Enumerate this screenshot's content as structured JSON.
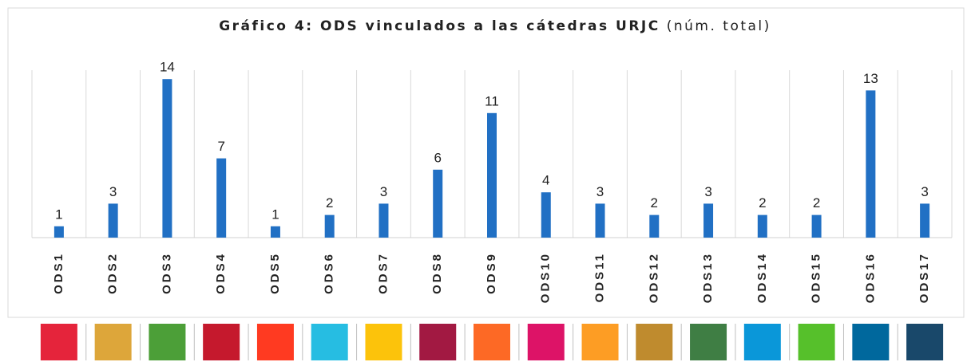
{
  "chart_data": {
    "type": "bar",
    "title": "Gráfico 4: ODS vinculados a las cátedras URJC",
    "subtitle": "(núm. total)",
    "categories": [
      "ODS1",
      "ODS2",
      "ODS3",
      "ODS4",
      "ODS5",
      "ODS6",
      "ODS7",
      "ODS8",
      "ODS9",
      "ODS10",
      "ODS11",
      "ODS12",
      "ODS13",
      "ODS14",
      "ODS15",
      "ODS16",
      "ODS17"
    ],
    "values": [
      1,
      3,
      14,
      7,
      1,
      2,
      3,
      6,
      11,
      4,
      3,
      2,
      3,
      2,
      2,
      13,
      3
    ],
    "color": "#2170c4",
    "ylim": [
      0,
      15
    ],
    "grid": true
  }
}
